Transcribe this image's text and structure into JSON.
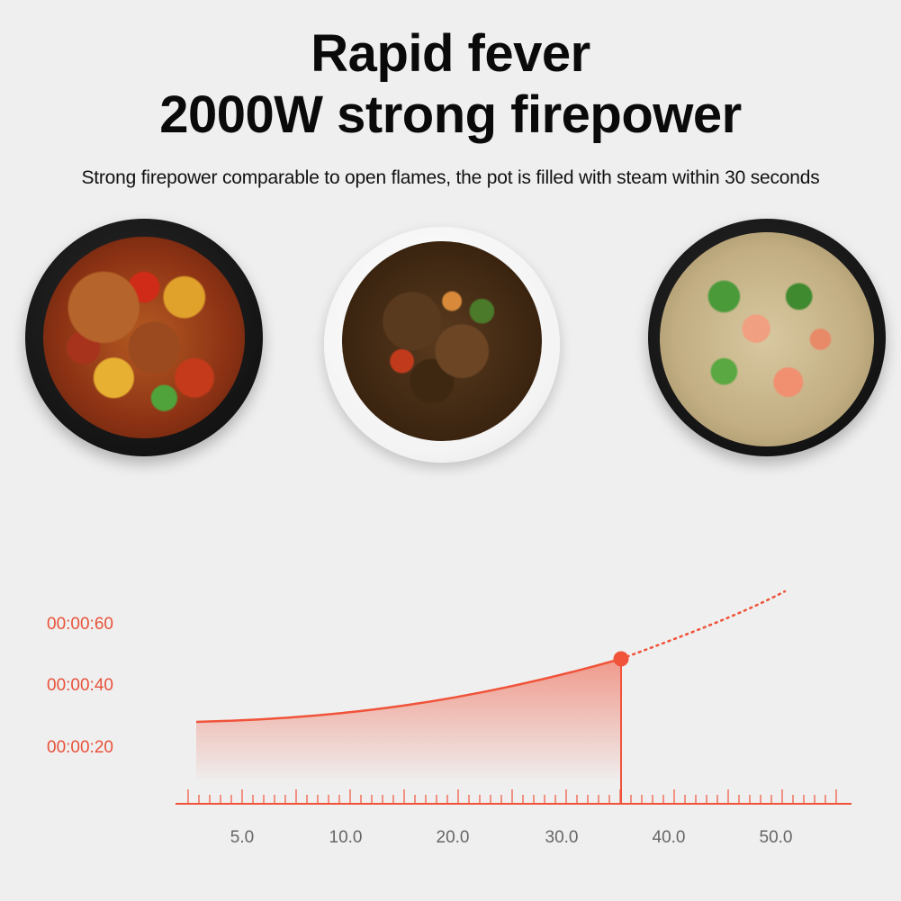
{
  "title_line1": "Rapid fever",
  "title_line2": "2000W strong firepower",
  "subtitle": "Strong firepower comparable to open flames, the pot is filled with steam within 30 seconds",
  "accent_color": "#f0533a",
  "chart_data": {
    "type": "line",
    "y_ticks": [
      "00:00:60",
      "00:00:40",
      "00:00:20"
    ],
    "x_ticks": [
      "5.0",
      "10.0",
      "20.0",
      "30.0",
      "40.0",
      "50.0"
    ],
    "highlight_point": "marked point at the end of the solid segment"
  }
}
